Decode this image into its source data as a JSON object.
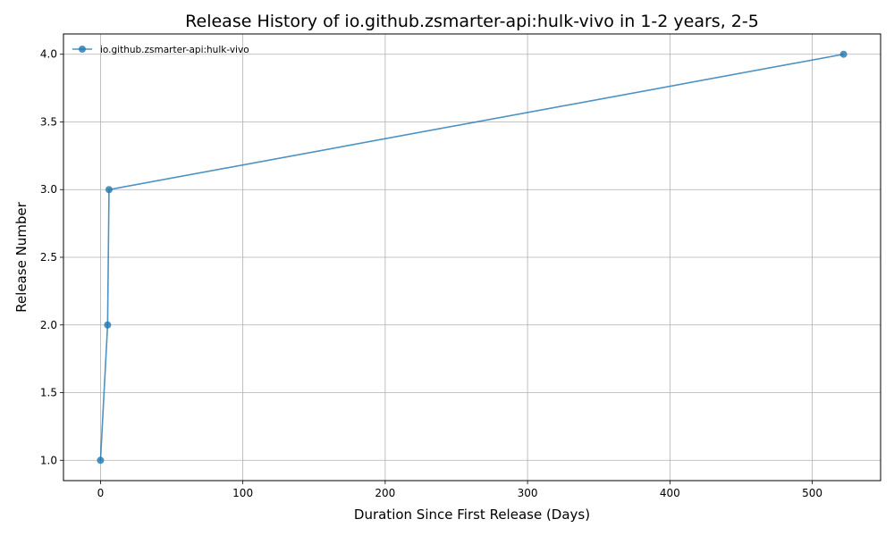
{
  "chart_data": {
    "type": "line",
    "title": "Release History of io.github.zsmarter-api:hulk-vivo in 1-2 years, 2-5",
    "xlabel": "Duration Since First Release (Days)",
    "ylabel": "Release Number",
    "xlim": [
      -26,
      548
    ],
    "ylim": [
      0.85,
      4.15
    ],
    "xticks": [
      0,
      100,
      200,
      300,
      400,
      500
    ],
    "yticks": [
      1.0,
      1.5,
      2.0,
      2.5,
      3.0,
      3.5,
      4.0
    ],
    "xtick_labels": [
      "0",
      "100",
      "200",
      "300",
      "400",
      "500"
    ],
    "ytick_labels": [
      "1.0",
      "1.5",
      "2.0",
      "2.5",
      "3.0",
      "3.5",
      "4.0"
    ],
    "grid": true,
    "legend_position": "upper-left",
    "series": [
      {
        "name": "io.github.zsmarter-api:hulk-vivo",
        "color": "#1f77b4",
        "x": [
          0,
          5,
          6,
          522
        ],
        "y": [
          1,
          2,
          3,
          4
        ]
      }
    ]
  }
}
